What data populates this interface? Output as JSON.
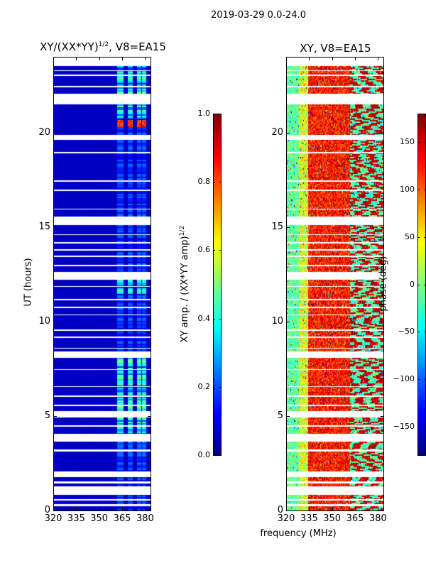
{
  "suptitle": "2019-03-29 0.0-24.0",
  "chart_data": [
    {
      "type": "heatmap",
      "title": "XY/(XX*YY)",
      "title_exponent": "1/2",
      "title_suffix": ", V8=EA15",
      "xlabel": "",
      "ylabel": "UT (hours)",
      "xlim": [
        320,
        384
      ],
      "ylim": [
        0,
        24
      ],
      "xticks": [
        "320",
        "335",
        "350",
        "365",
        "380"
      ],
      "yticks": [
        "0",
        "5",
        "10",
        "15",
        "20"
      ],
      "colormap": "jet",
      "colorbar": {
        "label": "XY amp. / (XX*YY amp)",
        "label_exponent": "1/2",
        "range": [
          0.0,
          1.0
        ],
        "ticks": [
          "0.0",
          "0.2",
          "0.4",
          "0.6",
          "0.8",
          "1.0"
        ]
      },
      "description_of_values": {
        "background": 0.05,
        "rfi_channels_MHz": [
          [
            362,
            366
          ],
          [
            369,
            372
          ],
          [
            375,
            378
          ],
          [
            378.5,
            381
          ]
        ],
        "rfi_level": 0.3,
        "high_band_hours": [
          20.3,
          20.7
        ],
        "high_band_value": 0.9
      }
    },
    {
      "type": "heatmap",
      "title": "XY, V8=EA15",
      "xlabel": "frequency (MHz)",
      "ylabel": "",
      "xlim": [
        320,
        384
      ],
      "ylim": [
        0,
        24
      ],
      "xticks": [
        "320",
        "335",
        "350",
        "365",
        "380"
      ],
      "yticks": [
        "0",
        "5",
        "10",
        "15",
        "20"
      ],
      "colormap": "jet",
      "colorbar": {
        "label": "phase (deg)",
        "range": [
          -180,
          180
        ],
        "ticks": [
          "150",
          "100",
          "50",
          "0",
          "−50",
          "−100",
          "−150"
        ]
      },
      "description_of_values": {
        "low_band_phase_deg": -20,
        "mid_band_phase_deg": 140,
        "high_band": "mixed"
      }
    }
  ],
  "flagged_hours": [
    [
      0.25,
      0.35
    ],
    [
      0.55,
      0.62
    ],
    [
      0.85,
      1.3
    ],
    [
      1.45,
      1.55
    ],
    [
      1.8,
      2.1
    ],
    [
      3.15,
      3.25
    ],
    [
      3.65,
      4.1
    ],
    [
      4.45,
      4.52
    ],
    [
      4.95,
      5.3
    ],
    [
      5.55,
      5.62
    ],
    [
      6.05,
      6.12
    ],
    [
      6.55,
      6.62
    ],
    [
      7.45,
      7.52
    ],
    [
      8.1,
      8.45
    ],
    [
      8.6,
      8.65
    ],
    [
      9.15,
      9.22
    ],
    [
      9.55,
      9.62
    ],
    [
      10.35,
      10.42
    ],
    [
      10.75,
      10.82
    ],
    [
      11.15,
      11.22
    ],
    [
      11.85,
      11.92
    ],
    [
      12.25,
      12.65
    ],
    [
      12.95,
      13.02
    ],
    [
      13.45,
      13.52
    ],
    [
      13.8,
      13.86
    ],
    [
      14.15,
      14.22
    ],
    [
      14.6,
      14.66
    ],
    [
      15.15,
      15.6
    ],
    [
      15.95,
      16.02
    ],
    [
      16.95,
      17.02
    ],
    [
      17.45,
      17.52
    ],
    [
      18.95,
      19.02
    ],
    [
      19.65,
      19.9
    ],
    [
      21.55,
      22.1
    ],
    [
      22.45,
      22.52
    ],
    [
      23.05,
      23.12
    ],
    [
      23.3,
      23.36
    ],
    [
      23.55,
      24.0
    ]
  ]
}
